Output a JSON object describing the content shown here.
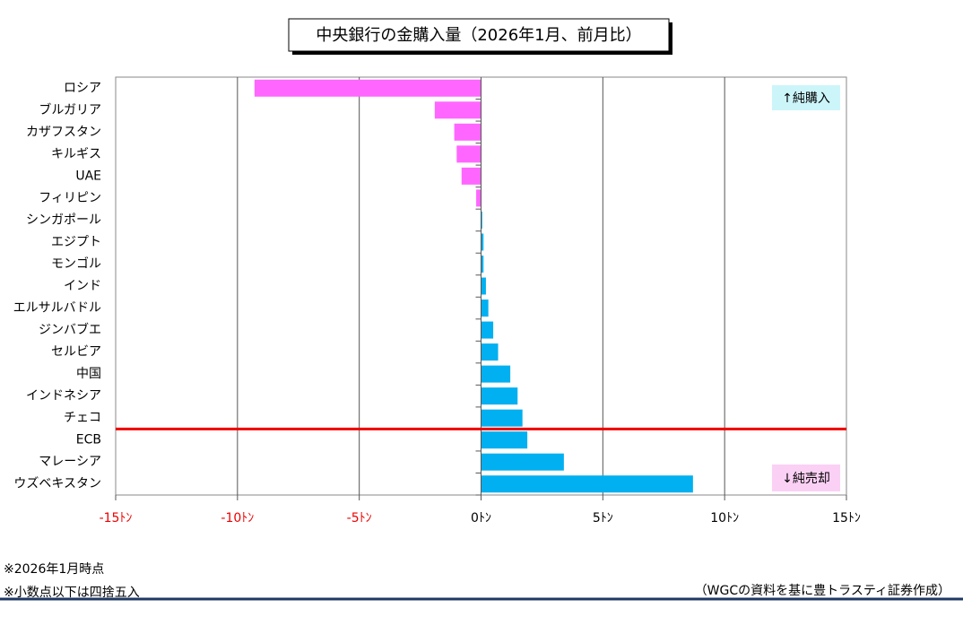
{
  "chart_data": {
    "type": "hbar",
    "title": "中央銀行の金購入量（2026年1月、前月比）",
    "categories": [
      "ロシア",
      "ブルガリア",
      "カザフスタン",
      "キルギス",
      "UAE",
      "フィリピン",
      "シンガポール",
      "エジプト",
      "モンゴル",
      "インド",
      "エルサルバドル",
      "ジンバブエ",
      "セルビア",
      "中国",
      "インドネシア",
      "チェコ",
      "ECB",
      "マレーシア",
      "ウズベキスタン"
    ],
    "values": [
      -9.3,
      -1.9,
      -1.1,
      -1.0,
      -0.8,
      -0.2,
      0.05,
      0.1,
      0.1,
      0.2,
      0.3,
      0.5,
      0.7,
      1.2,
      1.5,
      1.7,
      1.9,
      3.4,
      8.7
    ],
    "color_positive": "#00b0f0",
    "color_negative": "#ff66ff",
    "xlim": [
      -15,
      15
    ],
    "xticks": [
      {
        "value": -15,
        "label": "-15ﾄﾝ"
      },
      {
        "value": -10,
        "label": "-10ﾄﾝ"
      },
      {
        "value": -5,
        "label": "-5ﾄﾝ"
      },
      {
        "value": 0,
        "label": "0ﾄﾝ"
      },
      {
        "value": 5,
        "label": "5ﾄﾝ"
      },
      {
        "value": 10,
        "label": "10ﾄﾝ"
      },
      {
        "value": 15,
        "label": "15ﾄﾝ"
      }
    ],
    "grid": true,
    "annotations": [
      "↑純購入",
      "↓純売却"
    ]
  },
  "notes": [
    "※2026年1月時点",
    "※小数点以下は四捨五入"
  ],
  "source": "（WGCの資料を基に豊トラスティ証券作成）"
}
